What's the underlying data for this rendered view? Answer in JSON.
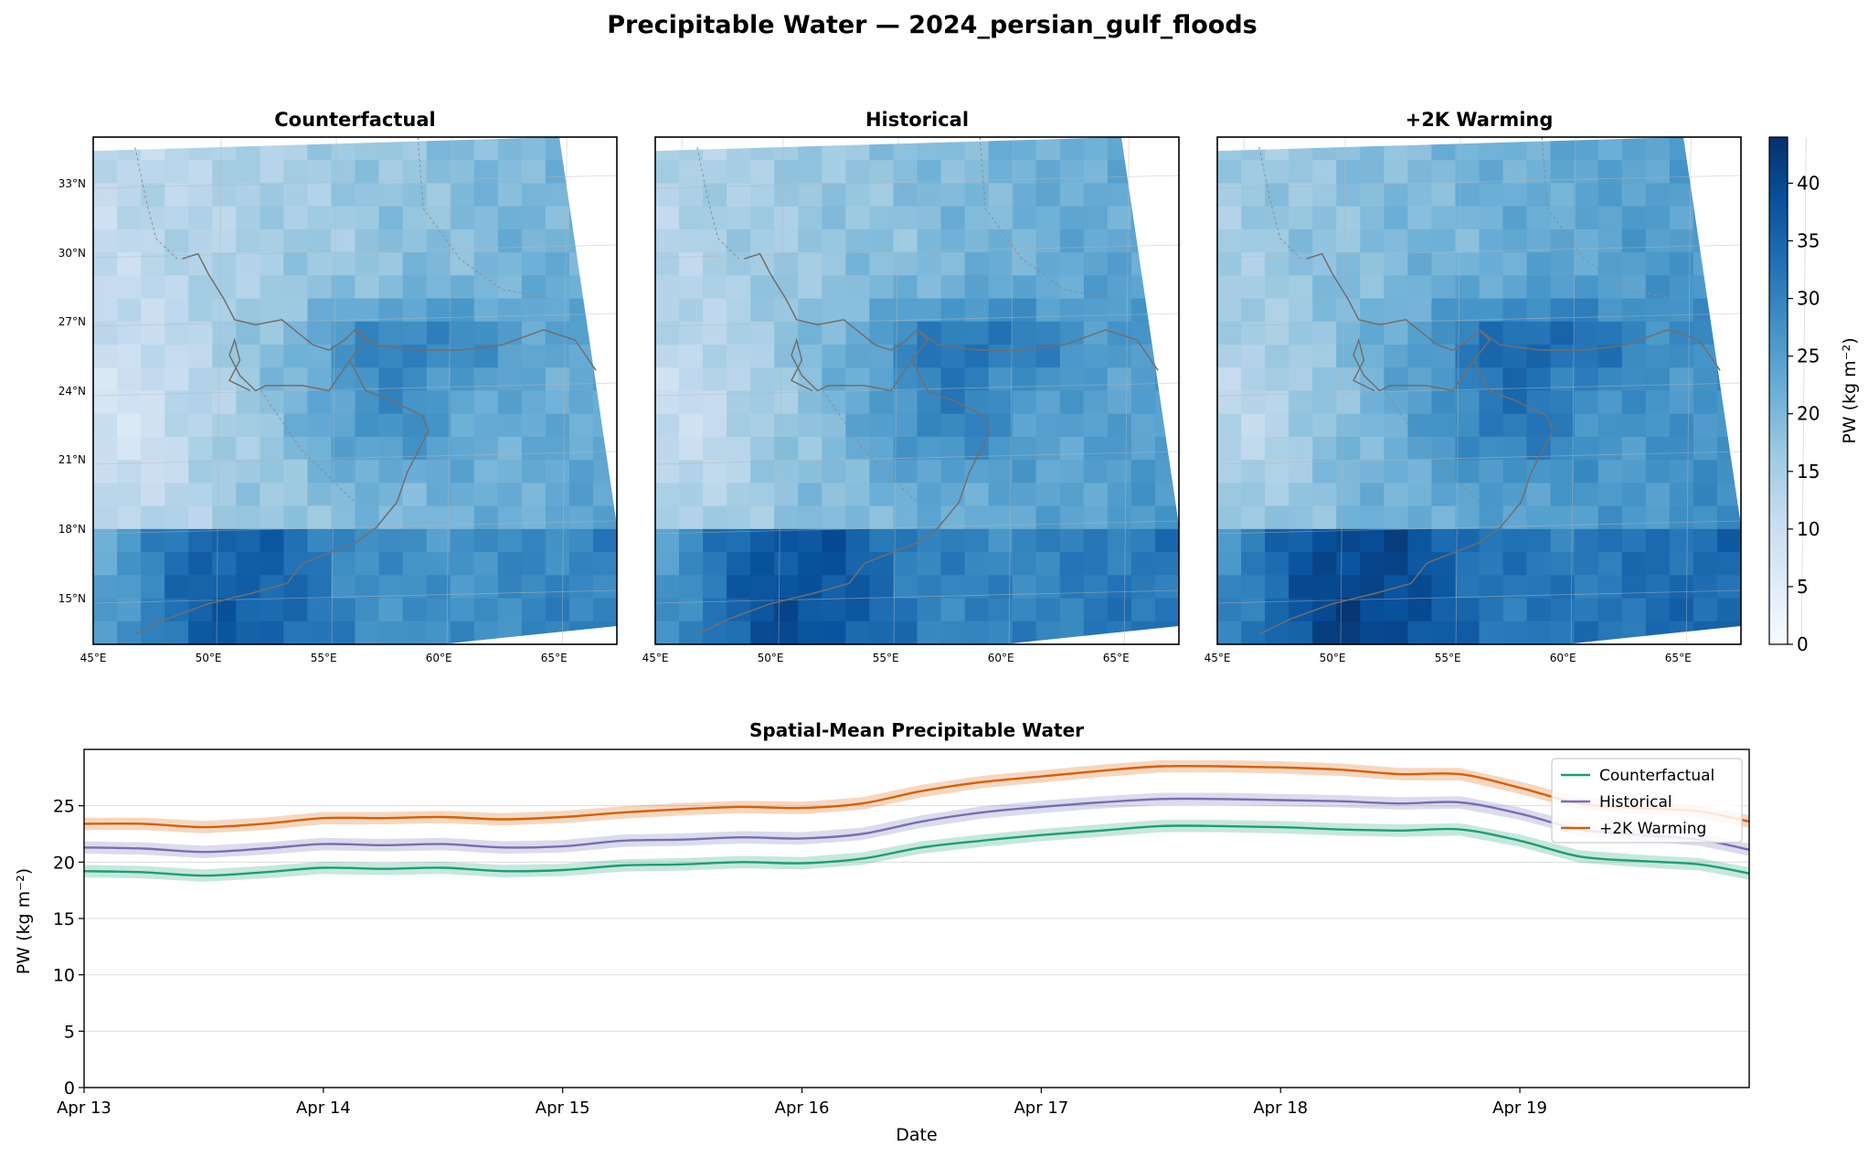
{
  "figure": {
    "title": "Precipitable Water — 2024_persian_gulf_floods"
  },
  "maps": {
    "panels": [
      {
        "title": "Counterfactual",
        "offset": 0
      },
      {
        "title": "Historical",
        "offset": 2.2
      },
      {
        "title": "+2K Warming",
        "offset": 4.4
      }
    ],
    "lon_ticks": [
      "45°E",
      "50°E",
      "55°E",
      "60°E",
      "65°E"
    ],
    "lat_ticks": [
      "33°N",
      "30°N",
      "27°N",
      "24°N",
      "21°N",
      "18°N",
      "15°N"
    ],
    "colorbar": {
      "label": "PW (kg m⁻²)",
      "ticks": [
        "0",
        "5",
        "10",
        "15",
        "20",
        "25",
        "30",
        "35",
        "40"
      ],
      "range": [
        0,
        44
      ],
      "colors": [
        "#f7fbff",
        "#deebf7",
        "#c6dbef",
        "#9ecae1",
        "#6baed6",
        "#4292c6",
        "#2171b5",
        "#08519c",
        "#08306b"
      ]
    }
  },
  "chart_data": {
    "type": "line",
    "title": "Spatial-Mean Precipitable Water",
    "xlabel": "Date",
    "ylabel": "PW (kg m⁻²)",
    "x_ticks": [
      "Apr 13",
      "Apr 14",
      "Apr 15",
      "Apr 16",
      "Apr 17",
      "Apr 18",
      "Apr 19"
    ],
    "x_range": [
      "2024-04-13 00:00",
      "2024-04-19 23:00"
    ],
    "x": [
      "2024-04-13 00:00",
      "2024-04-13 06:00",
      "2024-04-13 12:00",
      "2024-04-13 18:00",
      "2024-04-14 00:00",
      "2024-04-14 06:00",
      "2024-04-14 12:00",
      "2024-04-14 18:00",
      "2024-04-15 00:00",
      "2024-04-15 06:00",
      "2024-04-15 12:00",
      "2024-04-15 18:00",
      "2024-04-16 00:00",
      "2024-04-16 06:00",
      "2024-04-16 12:00",
      "2024-04-16 18:00",
      "2024-04-17 00:00",
      "2024-04-17 06:00",
      "2024-04-17 12:00",
      "2024-04-17 18:00",
      "2024-04-18 00:00",
      "2024-04-18 06:00",
      "2024-04-18 12:00",
      "2024-04-18 18:00",
      "2024-04-19 00:00",
      "2024-04-19 06:00",
      "2024-04-19 12:00",
      "2024-04-19 18:00",
      "2024-04-19 23:00"
    ],
    "ylim": [
      0,
      30
    ],
    "y_ticks": [
      "0",
      "5",
      "10",
      "15",
      "20",
      "25"
    ],
    "grid": true,
    "legend": "top-right",
    "series": [
      {
        "name": "Counterfactual",
        "color": "#1b9e77",
        "values": [
          19.2,
          19.1,
          18.8,
          19.1,
          19.5,
          19.4,
          19.5,
          19.2,
          19.3,
          19.7,
          19.8,
          20.0,
          19.9,
          20.3,
          21.3,
          21.9,
          22.4,
          22.8,
          23.2,
          23.2,
          23.1,
          22.9,
          22.8,
          22.9,
          21.9,
          20.5,
          20.1,
          19.8,
          19.0
        ]
      },
      {
        "name": "Historical",
        "color": "#7570b3",
        "values": [
          21.3,
          21.2,
          20.9,
          21.2,
          21.6,
          21.5,
          21.6,
          21.3,
          21.4,
          21.9,
          22.0,
          22.2,
          22.1,
          22.5,
          23.6,
          24.4,
          24.9,
          25.3,
          25.6,
          25.6,
          25.5,
          25.4,
          25.2,
          25.3,
          24.3,
          22.9,
          22.4,
          22.0,
          21.1
        ]
      },
      {
        "name": "+2K Warming",
        "color": "#d95f02",
        "values": [
          23.4,
          23.4,
          23.1,
          23.4,
          23.9,
          23.9,
          24.0,
          23.8,
          24.0,
          24.4,
          24.7,
          24.9,
          24.8,
          25.2,
          26.3,
          27.1,
          27.6,
          28.1,
          28.5,
          28.5,
          28.4,
          28.2,
          27.8,
          27.8,
          26.6,
          25.2,
          24.8,
          24.5,
          23.6
        ]
      }
    ]
  }
}
